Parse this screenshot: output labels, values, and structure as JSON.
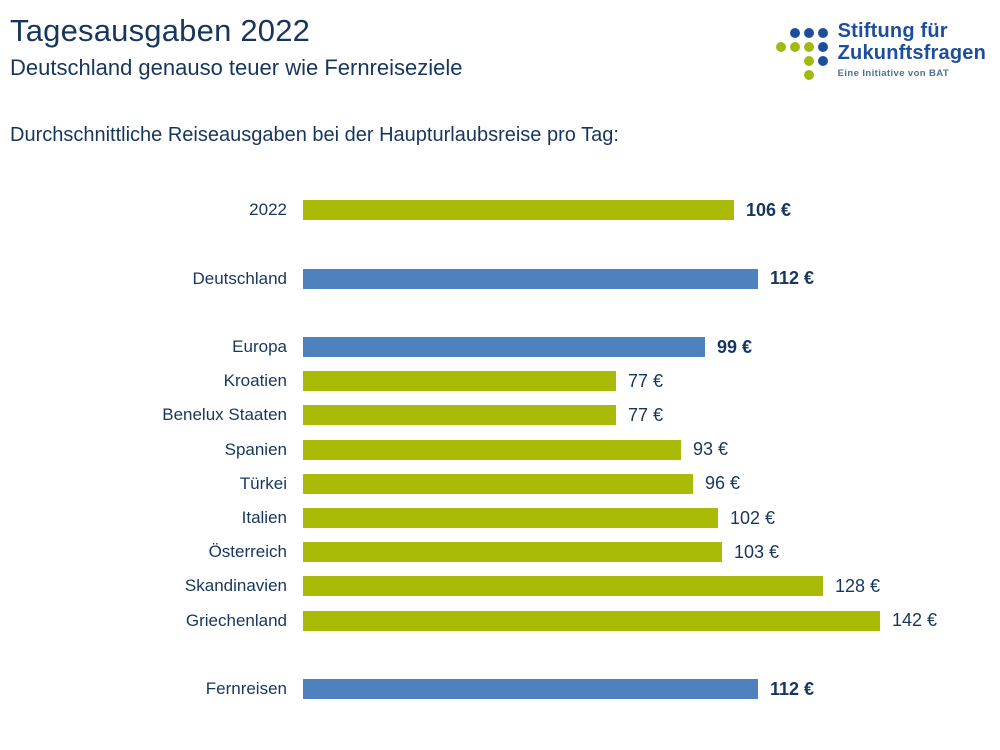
{
  "header": {
    "title": "Tagesausgaben 2022",
    "subtitle": "Deutschland genauso teuer wie Fernreiseziele"
  },
  "logo": {
    "line1": "Stiftung für",
    "line2": "Zukunftsfragen",
    "tagline": "Eine Initiative von BAT",
    "colors": {
      "blue": "#1D4E9E",
      "green": "#A2BA0F"
    },
    "dots": [
      [
        "none",
        "blue",
        "blue",
        "blue"
      ],
      [
        "green",
        "green",
        "green",
        "blue"
      ],
      [
        "none",
        "none",
        "green",
        "blue"
      ],
      [
        "none",
        "none",
        "green",
        "none"
      ]
    ]
  },
  "chart_data": {
    "type": "bar",
    "orientation": "horizontal",
    "title": "Durchschnittliche Reiseausgaben bei der Haupturlaubsreise pro Tag:",
    "unit": "€",
    "xlim": [
      0,
      142
    ],
    "colors": {
      "green": "#A9BA07",
      "blue": "#4E81BD",
      "text": "#17365D"
    },
    "rows": [
      {
        "label": "2022",
        "value": 106,
        "display": "106 €",
        "color": "green",
        "bold": true,
        "gap_before": false
      },
      {
        "label": "Deutschland",
        "value": 112,
        "display": "112 €",
        "color": "blue",
        "bold": true,
        "gap_before": true
      },
      {
        "label": "Europa",
        "value": 99,
        "display": "99 €",
        "color": "blue",
        "bold": true,
        "gap_before": true
      },
      {
        "label": "Kroatien",
        "value": 77,
        "display": "77 €",
        "color": "green",
        "bold": false,
        "gap_before": false
      },
      {
        "label": "Benelux Staaten",
        "value": 77,
        "display": "77 €",
        "color": "green",
        "bold": false,
        "gap_before": false
      },
      {
        "label": "Spanien",
        "value": 93,
        "display": "93 €",
        "color": "green",
        "bold": false,
        "gap_before": false
      },
      {
        "label": "Türkei",
        "value": 96,
        "display": "96 €",
        "color": "green",
        "bold": false,
        "gap_before": false
      },
      {
        "label": "Italien",
        "value": 102,
        "display": "102 €",
        "color": "green",
        "bold": false,
        "gap_before": false
      },
      {
        "label": "Österreich",
        "value": 103,
        "display": "103 €",
        "color": "green",
        "bold": false,
        "gap_before": false
      },
      {
        "label": "Skandinavien",
        "value": 128,
        "display": "128 €",
        "color": "green",
        "bold": false,
        "gap_before": false
      },
      {
        "label": "Griechenland",
        "value": 142,
        "display": "142 €",
        "color": "green",
        "bold": false,
        "gap_before": false
      },
      {
        "label": "Fernreisen",
        "value": 112,
        "display": "112 €",
        "color": "blue",
        "bold": true,
        "gap_before": true
      }
    ]
  }
}
